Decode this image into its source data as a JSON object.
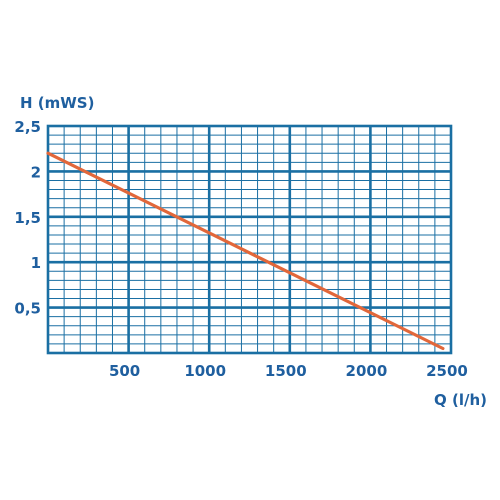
{
  "colors": {
    "grid": "#1a6fa3",
    "line": "#e2673a",
    "text": "#1f5f9f"
  },
  "chart_data": {
    "type": "line",
    "title": "",
    "xlabel": "Q (l/h)",
    "ylabel": "H (mWS)",
    "xlim": [
      0,
      2500
    ],
    "ylim": [
      0,
      2.5
    ],
    "x_ticks": [
      {
        "value": 500,
        "label": "500"
      },
      {
        "value": 1000,
        "label": "1000"
      },
      {
        "value": 1500,
        "label": "1500"
      },
      {
        "value": 2000,
        "label": "2000"
      },
      {
        "value": 2500,
        "label": "2500"
      }
    ],
    "y_ticks": [
      {
        "value": 0.5,
        "label": "0,5"
      },
      {
        "value": 1,
        "label": "1"
      },
      {
        "value": 1.5,
        "label": "1,5"
      },
      {
        "value": 2,
        "label": "2"
      },
      {
        "value": 2.5,
        "label": "2,5"
      }
    ],
    "grid": true,
    "series": [
      {
        "x": [
          0,
          2450
        ],
        "y": [
          2.2,
          0.05
        ]
      }
    ]
  }
}
